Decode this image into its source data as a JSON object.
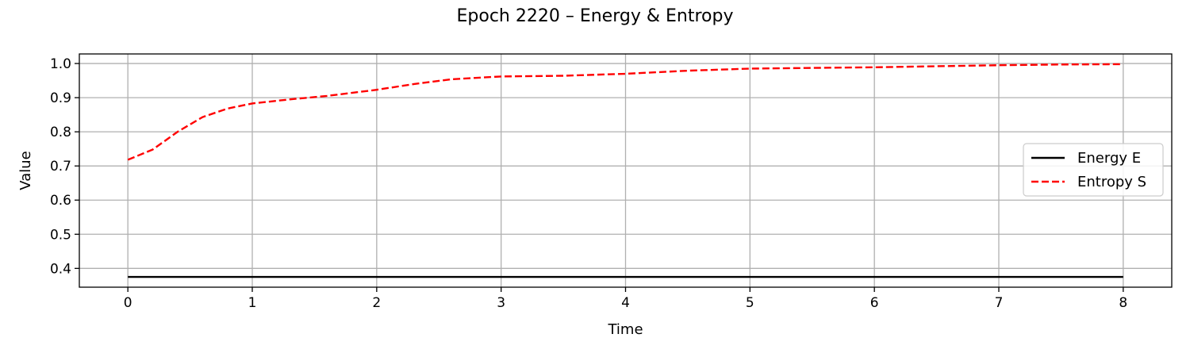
{
  "chart_data": {
    "type": "line",
    "title": "Epoch 2220 – Energy & Entropy",
    "xlabel": "Time",
    "ylabel": "Value",
    "xlim": [
      -0.39,
      8.39
    ],
    "ylim": [
      0.345,
      1.028
    ],
    "xticks": [
      0,
      1,
      2,
      3,
      4,
      5,
      6,
      7,
      8
    ],
    "yticks": [
      0.4,
      0.5,
      0.6,
      0.7,
      0.8,
      0.9,
      1.0
    ],
    "ytick_labels": [
      "0.4",
      "0.5",
      "0.6",
      "0.7",
      "0.8",
      "0.9",
      "1.0"
    ],
    "grid": true,
    "legend_position": "center-right",
    "series": [
      {
        "name": "Energy E",
        "color": "#000000",
        "style": "solid",
        "x": [
          0,
          1,
          2,
          3,
          4,
          5,
          6,
          7,
          8
        ],
        "y": [
          0.375,
          0.375,
          0.375,
          0.375,
          0.375,
          0.375,
          0.375,
          0.375,
          0.375
        ]
      },
      {
        "name": "Entropy S",
        "color": "#ff0000",
        "style": "dashed",
        "x": [
          0,
          0.2,
          0.4,
          0.6,
          0.8,
          1.0,
          1.3,
          1.6,
          2.0,
          2.3,
          2.6,
          3.0,
          3.5,
          4.0,
          4.5,
          5.0,
          5.5,
          6.0,
          6.5,
          7.0,
          7.5,
          8.0
        ],
        "y": [
          0.718,
          0.748,
          0.8,
          0.843,
          0.868,
          0.883,
          0.895,
          0.905,
          0.923,
          0.94,
          0.954,
          0.962,
          0.964,
          0.97,
          0.979,
          0.985,
          0.987,
          0.989,
          0.992,
          0.995,
          0.997,
          0.998
        ]
      }
    ]
  }
}
